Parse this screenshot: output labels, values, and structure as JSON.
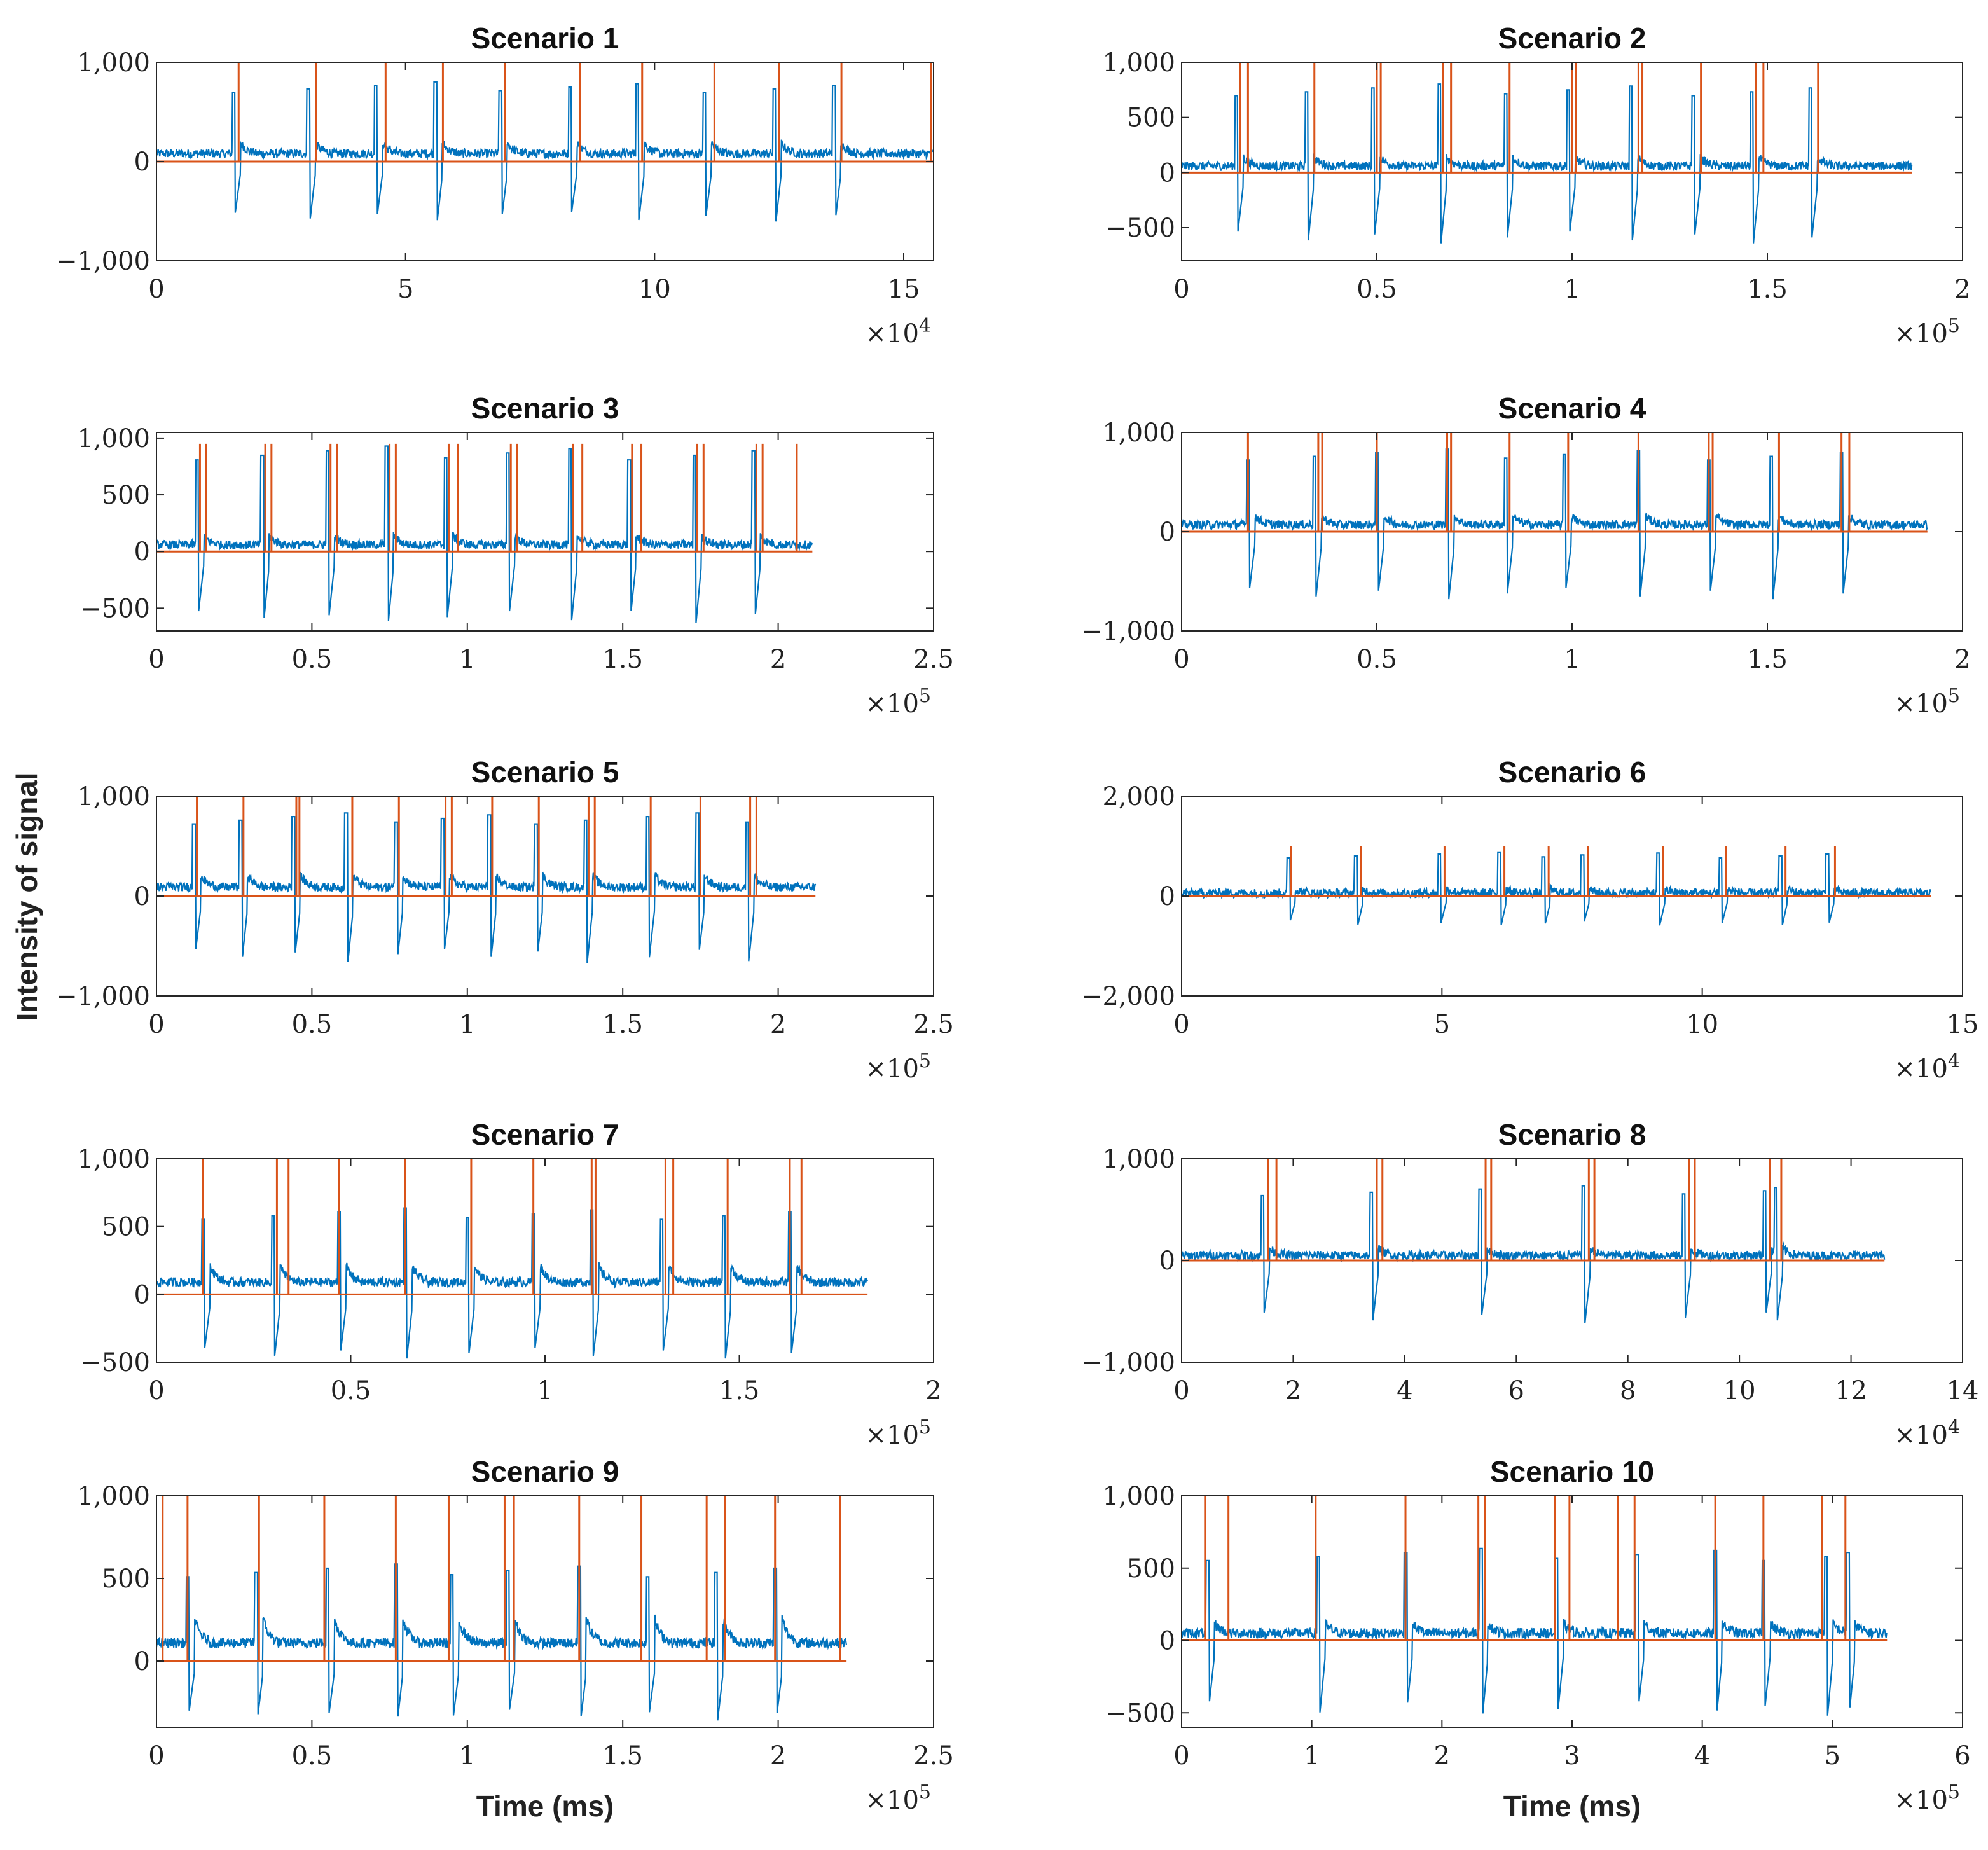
{
  "figure": {
    "ylabel": "Intensity of signal",
    "xlabel": "Time (ms)"
  },
  "colors": {
    "signal": "#0072BD",
    "marker": "#D95319",
    "axis": "#262626"
  },
  "chart_data": [
    {
      "type": "line",
      "title": "Scenario 1",
      "xlim": [
        0,
        15.6
      ],
      "ylim": [
        -1000,
        1000
      ],
      "xticks": [
        0,
        5,
        10,
        15
      ],
      "xtick_labels": [
        "0",
        "5",
        "10",
        "15"
      ],
      "yticks": [
        -1000,
        0,
        1000
      ],
      "ytick_labels": [
        "−1,000",
        "0",
        "1,000"
      ],
      "exponent": "4",
      "xlabel": "",
      "signal_end": 15.6,
      "beats": [
        1.55,
        3.05,
        4.4,
        5.6,
        6.9,
        8.3,
        9.65,
        11.0,
        12.4,
        13.6
      ],
      "markers": [
        1.65,
        3.2,
        4.6,
        5.75,
        7.0,
        8.5,
        9.75,
        11.2,
        12.5,
        13.75,
        15.55
      ],
      "beat_up": 820,
      "beat_down": -650,
      "baseline": 80,
      "marker_height": 1000
    },
    {
      "type": "line",
      "title": "Scenario 2",
      "xlim": [
        0,
        2
      ],
      "ylim": [
        -800,
        1000
      ],
      "xticks": [
        0,
        0.5,
        1,
        1.5,
        2
      ],
      "xtick_labels": [
        "0",
        "0.5",
        "1",
        "1.5",
        "2"
      ],
      "yticks": [
        -500,
        0,
        500,
        1000
      ],
      "ytick_labels": [
        "−500",
        "0",
        "500",
        "1,000"
      ],
      "exponent": "5",
      "xlabel": "",
      "signal_end": 1.87,
      "beats": [
        0.14,
        0.32,
        0.49,
        0.66,
        0.83,
        0.99,
        1.15,
        1.31,
        1.46,
        1.61
      ],
      "markers": [
        0.15,
        0.17,
        0.34,
        0.5,
        0.51,
        0.67,
        0.69,
        0.84,
        1.0,
        1.01,
        1.17,
        1.18,
        1.33,
        1.47,
        1.49,
        1.63
      ],
      "beat_up": 820,
      "beat_down": -680,
      "baseline": 60,
      "marker_height": 1000
    },
    {
      "type": "line",
      "title": "Scenario 3",
      "xlim": [
        0,
        2.5
      ],
      "ylim": [
        -700,
        1050
      ],
      "xticks": [
        0,
        0.5,
        1,
        1.5,
        2,
        2.5
      ],
      "xtick_labels": [
        "0",
        "0.5",
        "1",
        "1.5",
        "2",
        "2.5"
      ],
      "yticks": [
        -500,
        0,
        500,
        1000
      ],
      "ytick_labels": [
        "−500",
        "0",
        "500",
        "1,000"
      ],
      "exponent": "5",
      "xlabel": "",
      "signal_end": 2.11,
      "beats": [
        0.13,
        0.34,
        0.55,
        0.74,
        0.93,
        1.13,
        1.33,
        1.52,
        1.73,
        1.92
      ],
      "markers": [
        0.14,
        0.16,
        0.35,
        0.37,
        0.56,
        0.58,
        0.75,
        0.77,
        0.94,
        0.97,
        1.14,
        1.16,
        1.34,
        1.37,
        1.53,
        1.56,
        1.74,
        1.76,
        1.93,
        1.95,
        2.06
      ],
      "beat_up": 950,
      "beat_down": -680,
      "baseline": 60,
      "marker_height": 950
    },
    {
      "type": "line",
      "title": "Scenario 4",
      "xlim": [
        0,
        2
      ],
      "ylim": [
        -1000,
        1000
      ],
      "xticks": [
        0,
        0.5,
        1,
        1.5,
        2
      ],
      "xtick_labels": [
        "0",
        "0.5",
        "1",
        "1.5",
        "2"
      ],
      "yticks": [
        -1000,
        0,
        1000
      ],
      "ytick_labels": [
        "−1,000",
        "0",
        "1,000"
      ],
      "exponent": "5",
      "xlabel": "",
      "signal_end": 1.91,
      "beats": [
        0.17,
        0.34,
        0.5,
        0.68,
        0.83,
        0.98,
        1.17,
        1.35,
        1.51,
        1.69
      ],
      "markers": [
        0.17,
        0.35,
        0.36,
        0.5,
        0.68,
        0.69,
        0.84,
        0.99,
        1.17,
        1.35,
        1.36,
        1.53,
        1.69,
        1.71
      ],
      "beat_up": 850,
      "beat_down": -720,
      "baseline": 70,
      "marker_height": 1000
    },
    {
      "type": "line",
      "title": "Scenario 5",
      "xlim": [
        0,
        2.5
      ],
      "ylim": [
        -1000,
        1000
      ],
      "xticks": [
        0,
        0.5,
        1,
        1.5,
        2,
        2.5
      ],
      "xtick_labels": [
        "0",
        "0.5",
        "1",
        "1.5",
        "2",
        "2.5"
      ],
      "yticks": [
        -1000,
        0,
        1000
      ],
      "ytick_labels": [
        "−1,000",
        "0",
        "1,000"
      ],
      "exponent": "5",
      "xlabel": "",
      "signal_end": 2.12,
      "beats": [
        0.12,
        0.27,
        0.44,
        0.61,
        0.77,
        0.92,
        1.07,
        1.22,
        1.38,
        1.58,
        1.74,
        1.9
      ],
      "markers": [
        0.13,
        0.28,
        0.45,
        0.46,
        0.63,
        0.78,
        0.93,
        0.95,
        1.08,
        1.23,
        1.39,
        1.41,
        1.59,
        1.75,
        1.91,
        1.93
      ],
      "beat_up": 850,
      "beat_down": -720,
      "baseline": 90,
      "marker_height": 1000
    },
    {
      "type": "line",
      "title": "Scenario 6",
      "xlim": [
        0,
        15
      ],
      "ylim": [
        -2000,
        2000
      ],
      "xticks": [
        0,
        5,
        10,
        15
      ],
      "xtick_labels": [
        "0",
        "5",
        "10",
        "15"
      ],
      "yticks": [
        -2000,
        0,
        2000
      ],
      "ytick_labels": [
        "−2,000",
        "0",
        "2,000"
      ],
      "exponent": "4",
      "xlabel": "",
      "signal_end": 14.4,
      "beats": [
        2.05,
        3.35,
        4.95,
        6.1,
        6.95,
        7.7,
        9.15,
        10.35,
        11.5,
        12.4
      ],
      "markers": [
        2.1,
        3.45,
        5.05,
        6.2,
        7.05,
        7.8,
        9.25,
        10.45,
        11.6,
        12.55
      ],
      "beat_up": 900,
      "beat_down": -650,
      "baseline": 60,
      "marker_height": 1000
    },
    {
      "type": "line",
      "title": "Scenario 7",
      "xlim": [
        0,
        2
      ],
      "ylim": [
        -500,
        1000
      ],
      "xticks": [
        0,
        0.5,
        1,
        1.5,
        2
      ],
      "xtick_labels": [
        "0",
        "0.5",
        "1",
        "1.5",
        "2"
      ],
      "yticks": [
        -500,
        0,
        500,
        1000
      ],
      "ytick_labels": [
        "−500",
        "0",
        "500",
        "1,000"
      ],
      "exponent": "5",
      "xlabel": "",
      "signal_end": 1.83,
      "beats": [
        0.12,
        0.3,
        0.47,
        0.64,
        0.8,
        0.97,
        1.12,
        1.3,
        1.46,
        1.63
      ],
      "markers": [
        0.12,
        0.31,
        0.34,
        0.47,
        0.64,
        0.81,
        0.97,
        1.12,
        1.13,
        1.31,
        1.33,
        1.47,
        1.63,
        1.66
      ],
      "beat_up": 650,
      "beat_down": -500,
      "baseline": 90,
      "marker_height": 1000
    },
    {
      "type": "line",
      "title": "Scenario 8",
      "xlim": [
        0,
        14
      ],
      "ylim": [
        -1000,
        1000
      ],
      "xticks": [
        0,
        2,
        4,
        6,
        8,
        10,
        12,
        14
      ],
      "xtick_labels": [
        "0",
        "2",
        "4",
        "6",
        "8",
        "10",
        "12",
        "14"
      ],
      "yticks": [
        -1000,
        0,
        1000
      ],
      "ytick_labels": [
        "−1,000",
        "0",
        "1,000"
      ],
      "exponent": "4",
      "xlabel": "",
      "signal_end": 12.6,
      "beats": [
        1.45,
        3.4,
        5.35,
        7.2,
        9.0,
        10.45,
        10.65
      ],
      "markers": [
        1.55,
        1.7,
        3.5,
        3.6,
        5.45,
        5.55,
        7.3,
        7.4,
        9.1,
        9.2,
        10.55,
        10.75
      ],
      "beat_up": 750,
      "beat_down": -650,
      "baseline": 50,
      "marker_height": 1000
    },
    {
      "type": "line",
      "title": "Scenario 9",
      "xlim": [
        0,
        2.5
      ],
      "ylim": [
        -400,
        1000
      ],
      "xticks": [
        0,
        0.5,
        1,
        1.5,
        2,
        2.5
      ],
      "xtick_labels": [
        "0",
        "0.5",
        "1",
        "1.5",
        "2",
        "2.5"
      ],
      "yticks": [
        0,
        500,
        1000
      ],
      "ytick_labels": [
        "0",
        "500",
        "1,000"
      ],
      "exponent": "5",
      "xlabel": "Time (ms)",
      "signal_end": 2.22,
      "beats": [
        0.1,
        0.32,
        0.55,
        0.77,
        0.95,
        1.13,
        1.36,
        1.58,
        1.8,
        1.99
      ],
      "markers": [
        0.02,
        0.1,
        0.33,
        0.54,
        0.77,
        0.94,
        1.12,
        1.15,
        1.36,
        1.56,
        1.77,
        1.83,
        1.99,
        2.2
      ],
      "beat_up": 600,
      "beat_down": -380,
      "baseline": 110,
      "marker_height": 1000
    },
    {
      "type": "line",
      "title": "Scenario 10",
      "xlim": [
        0,
        6
      ],
      "ylim": [
        -600,
        1000
      ],
      "xticks": [
        0,
        1,
        2,
        3,
        4,
        5,
        6
      ],
      "xtick_labels": [
        "0",
        "1",
        "2",
        "3",
        "4",
        "5",
        "6"
      ],
      "yticks": [
        -500,
        0,
        500,
        1000
      ],
      "ytick_labels": [
        "−500",
        "0",
        "500",
        "1,000"
      ],
      "exponent": "5",
      "xlabel": "Time (ms)",
      "signal_end": 5.42,
      "beats": [
        0.2,
        1.05,
        1.72,
        2.3,
        2.88,
        3.5,
        4.1,
        4.47,
        4.95,
        5.12
      ],
      "markers": [
        0.18,
        0.36,
        1.03,
        1.72,
        2.28,
        2.33,
        2.87,
        2.98,
        3.35,
        3.48,
        4.1,
        4.47,
        4.92,
        5.1
      ],
      "beat_up": 650,
      "beat_down": -550,
      "baseline": 50,
      "marker_height": 1000
    }
  ]
}
